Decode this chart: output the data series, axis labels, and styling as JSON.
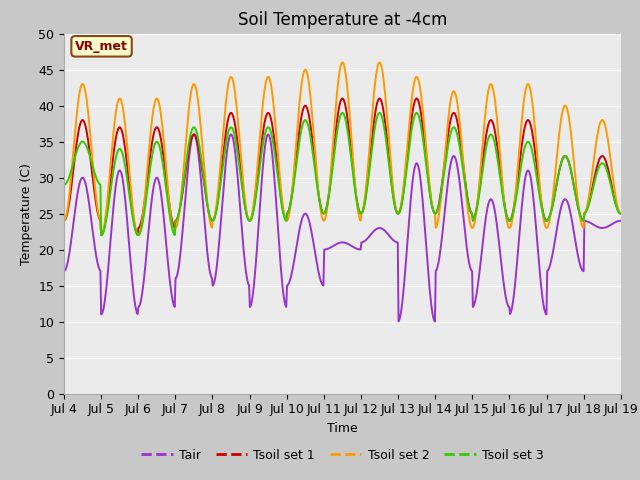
{
  "title": "Soil Temperature at -4cm",
  "xlabel": "Time",
  "ylabel": "Temperature (C)",
  "ylim": [
    0,
    50
  ],
  "yticks": [
    0,
    5,
    10,
    15,
    20,
    25,
    30,
    35,
    40,
    45,
    50
  ],
  "xtick_labels": [
    "Jul 4",
    "Jul 5",
    "Jul 6",
    "Jul 7",
    "Jul 8",
    "Jul 9",
    "Jul 10",
    "Jul 11",
    "Jul 12",
    "Jul 13",
    "Jul 14",
    "Jul 15",
    "Jul 16",
    "Jul 17",
    "Jul 18",
    "Jul 19"
  ],
  "legend_labels": [
    "Tair",
    "Tsoil set 1",
    "Tsoil set 2",
    "Tsoil set 3"
  ],
  "colors": {
    "Tair": "#9933cc",
    "Tsoil_set1": "#cc0000",
    "Tsoil_set2": "#ff9900",
    "Tsoil_set3": "#33cc00"
  },
  "annotation_text": "VR_met",
  "annotation_bg": "#ffffcc",
  "annotation_border": "#8b4513",
  "bg_color_inner": "#ebebeb",
  "bg_color_outer": "#c8c8c8",
  "grid_color": "#ffffff",
  "title_fontsize": 12,
  "label_fontsize": 9,
  "tick_fontsize": 9,
  "legend_fontsize": 9,
  "line_width": 1.4,
  "days": 15,
  "tair_peaks": [
    30,
    31,
    30,
    36,
    36,
    36,
    25,
    21,
    23,
    32,
    33,
    27,
    31,
    27,
    23
  ],
  "tair_mins": [
    17,
    11,
    12,
    16,
    15,
    12,
    15,
    20,
    21,
    10,
    17,
    12,
    11,
    17,
    24
  ],
  "tsoil1_peaks": [
    38,
    37,
    37,
    36,
    39,
    39,
    40,
    41,
    41,
    41,
    39,
    38,
    38,
    33,
    33
  ],
  "tsoil1_mins": [
    24,
    22,
    23,
    24,
    24,
    24,
    25,
    25,
    25,
    25,
    25,
    24,
    24,
    24,
    25
  ],
  "tsoil2_peaks": [
    43,
    41,
    41,
    43,
    44,
    44,
    45,
    46,
    46,
    44,
    42,
    43,
    43,
    40,
    38
  ],
  "tsoil2_mins": [
    24,
    22,
    22,
    23,
    24,
    24,
    24,
    24,
    25,
    25,
    23,
    23,
    23,
    23,
    25
  ],
  "tsoil3_peaks": [
    35,
    34,
    35,
    37,
    37,
    37,
    38,
    39,
    39,
    39,
    37,
    36,
    35,
    33,
    32
  ],
  "tsoil3_mins": [
    29,
    22,
    22,
    24,
    24,
    24,
    25,
    25,
    25,
    25,
    25,
    24,
    24,
    24,
    25
  ],
  "num_points": 720
}
